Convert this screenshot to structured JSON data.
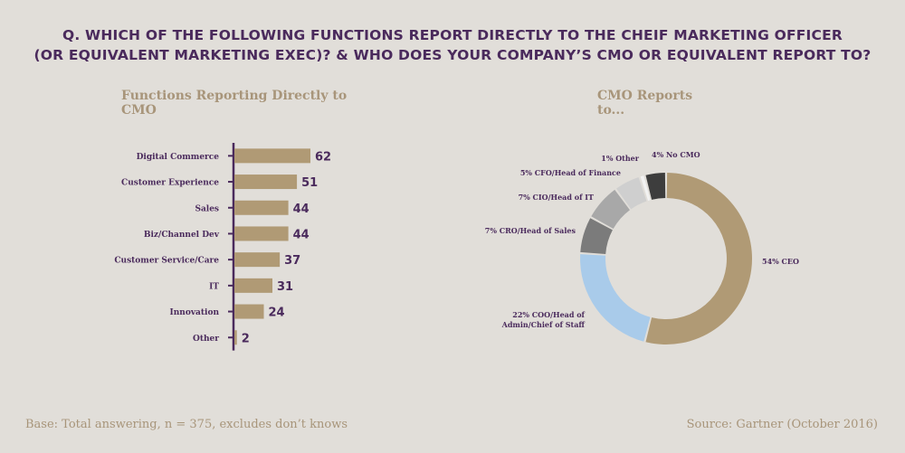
{
  "title_line1": "Q. WHICH OF THE FOLLOWING FUNCTIONS REPORT DIRECTLY TO THE CHEIF MARKETING OFFICER",
  "title_line2": "(OR EQUIVALENT MARKETING EXEC)? & WHO DOES YOUR COMPANY’S CMO OR EQUIVALENT REPORT TO?",
  "base_note": "Base: Total answering, n = 375, excludes don’t knows",
  "source_note": "Source: Gartner (October 2016)",
  "colors": {
    "title": "#4a2a5c",
    "bar": "#b09a75",
    "axis": "#4a2a5c",
    "label": "#4a2a5c",
    "subtitle": "#a8957a"
  },
  "chart_data": [
    {
      "type": "bar",
      "orientation": "horizontal",
      "title": "Functions Reporting Directly to CMO",
      "categories": [
        "Digital Commerce",
        "Customer Experience",
        "Sales",
        "Biz/Channel Dev",
        "Customer Service/Care",
        "IT",
        "Innovation",
        "Other"
      ],
      "values": [
        62,
        51,
        44,
        44,
        37,
        31,
        24,
        2
      ],
      "data_labels": [
        "62",
        "51",
        "44",
        "44",
        "37",
        "31",
        "24",
        "2"
      ]
    },
    {
      "type": "pie",
      "style": "donut",
      "title": "CMO Reports to...",
      "slices": [
        {
          "label": "54% CEO",
          "value": 54,
          "color": "#b09a75"
        },
        {
          "label": "22% COO/Head of Admin/Chief of Staff",
          "label_lines": [
            "22% COO/Head of",
            "Admin/Chief of Staff"
          ],
          "value": 22,
          "color": "#a9cbea"
        },
        {
          "label": "7% CRO/Head of Sales",
          "value": 7,
          "color": "#7b7b7b"
        },
        {
          "label": "7% CIO/Head of IT",
          "value": 7,
          "color": "#a8a8a8"
        },
        {
          "label": "5% CFO/Head of Finance",
          "value": 5,
          "color": "#cfcfcf"
        },
        {
          "label": "1% Other",
          "value": 1,
          "color": "#f2f2f2"
        },
        {
          "label": "4% No CMO",
          "value": 4,
          "color": "#3d3d3d"
        }
      ]
    }
  ]
}
